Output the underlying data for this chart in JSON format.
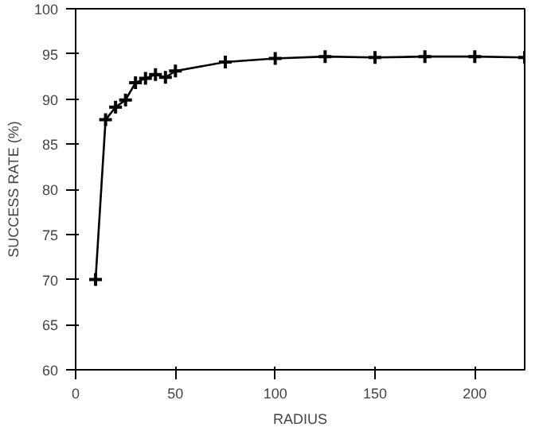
{
  "chart_data": {
    "type": "line",
    "xlabel": "RADIUS",
    "ylabel": "SUCCESS RATE (%)",
    "x": [
      10,
      15,
      20,
      25,
      30,
      35,
      40,
      45,
      50,
      75,
      100,
      125,
      150,
      175,
      200,
      225
    ],
    "series": [
      {
        "color": "#000000",
        "values": [
          70,
          87.7,
          89.1,
          89.9,
          91.8,
          92.3,
          92.7,
          92.4,
          93.1,
          94.1,
          94.5,
          94.7,
          94.6,
          94.7,
          94.7,
          94.6
        ]
      }
    ],
    "xlim": [
      0,
      225
    ],
    "xticks": [
      0,
      50,
      100,
      150,
      200
    ],
    "ylim": [
      60,
      100
    ],
    "yticks": [
      60,
      65,
      70,
      75,
      80,
      85,
      90,
      95,
      100
    ],
    "grid": false,
    "marker": "cross",
    "line_style": "solid"
  }
}
